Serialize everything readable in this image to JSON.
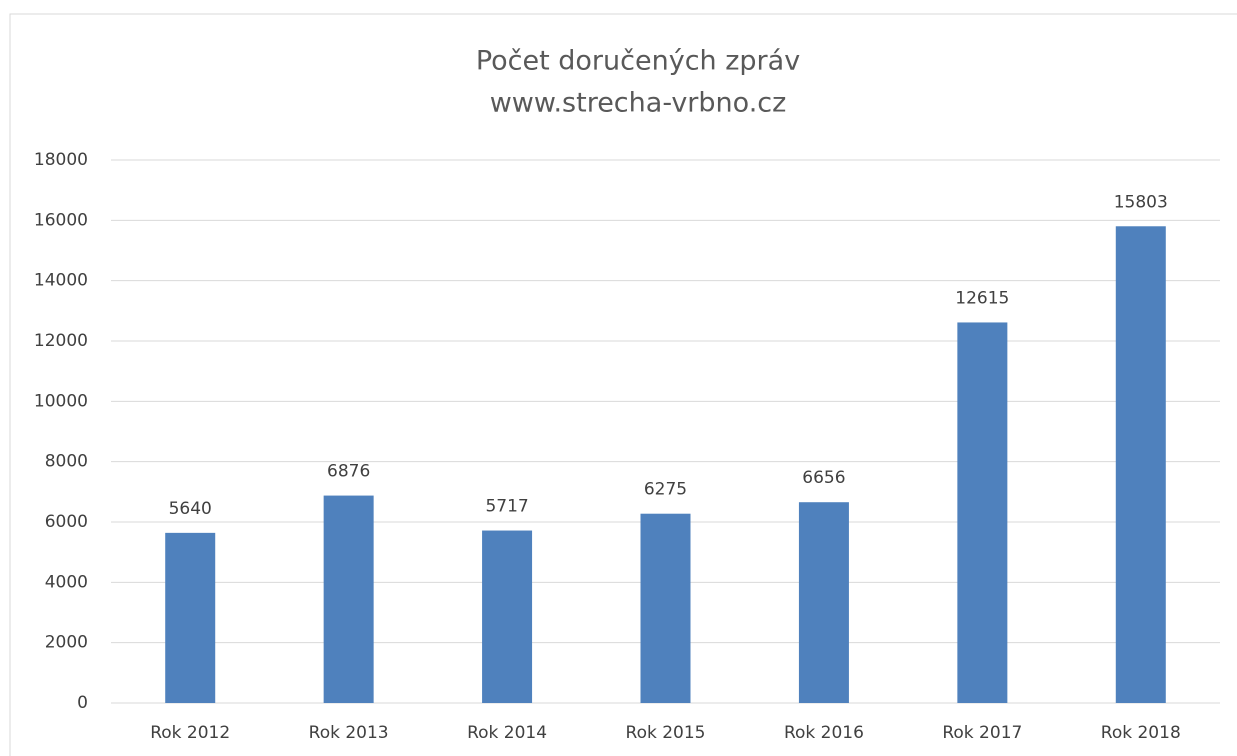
{
  "chart_data": {
    "type": "bar",
    "title": "Počet doručených zpráv",
    "subtitle": "www.strecha-vrbno.cz",
    "categories": [
      "Rok 2012",
      "Rok 2013",
      "Rok 2014",
      "Rok 2015",
      "Rok 2016",
      "Rok 2017",
      "Rok 2018"
    ],
    "values": [
      5640,
      6876,
      5717,
      6275,
      6656,
      12615,
      15803
    ],
    "color": "#4f81bd",
    "ylim": [
      0,
      18000
    ],
    "yticks": [
      0,
      2000,
      4000,
      6000,
      8000,
      10000,
      12000,
      14000,
      16000,
      18000
    ],
    "grid": true
  }
}
